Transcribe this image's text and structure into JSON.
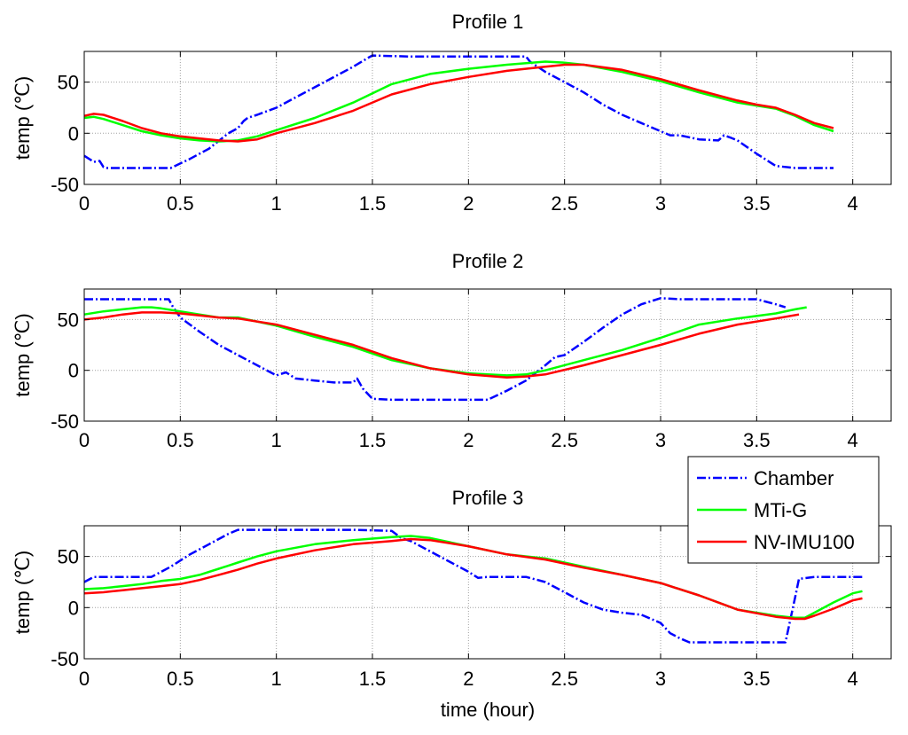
{
  "chart_data": [
    {
      "type": "line",
      "title": "Profile 1",
      "xlabel": "",
      "ylabel": "temp (℃)",
      "xlim": [
        0,
        4.2
      ],
      "ylim": [
        -50,
        80
      ],
      "xticks": [
        "0",
        "0.5",
        "1",
        "1.5",
        "2",
        "2.5",
        "3",
        "3.5",
        "4"
      ],
      "yticks": [
        "-50",
        "0",
        "50"
      ],
      "grid": true,
      "series": [
        {
          "name": "Chamber",
          "color": "#0000ff",
          "style": "dashdot",
          "x": [
            0,
            0.05,
            0.08,
            0.1,
            0.12,
            0.3,
            0.45,
            0.55,
            0.65,
            0.75,
            0.8,
            0.83,
            0.85,
            0.9,
            1.0,
            1.1,
            1.2,
            1.3,
            1.4,
            1.48,
            1.5,
            1.7,
            1.9,
            2.1,
            2.3,
            2.32,
            2.4,
            2.5,
            2.6,
            2.7,
            2.8,
            2.9,
            3.0,
            3.05,
            3.1,
            3.2,
            3.3,
            3.33,
            3.36,
            3.4,
            3.5,
            3.6,
            3.7,
            3.8,
            3.9
          ],
          "y": [
            -22,
            -28,
            -27,
            -33,
            -34,
            -34,
            -34,
            -25,
            -15,
            0,
            5,
            12,
            15,
            18,
            25,
            35,
            45,
            55,
            65,
            74,
            76,
            75,
            75,
            75,
            75,
            70,
            60,
            50,
            40,
            28,
            18,
            10,
            2,
            -2,
            -2,
            -6,
            -7,
            -2,
            -4,
            -7,
            -20,
            -32,
            -34,
            -34,
            -34
          ]
        },
        {
          "name": "MTi-G",
          "color": "#00ff00",
          "style": "solid",
          "x": [
            0,
            0.05,
            0.1,
            0.2,
            0.3,
            0.4,
            0.5,
            0.6,
            0.7,
            0.8,
            0.9,
            1.0,
            1.2,
            1.4,
            1.6,
            1.8,
            2.0,
            2.2,
            2.4,
            2.5,
            2.6,
            2.8,
            3.0,
            3.2,
            3.4,
            3.5,
            3.6,
            3.7,
            3.8,
            3.9
          ],
          "y": [
            15,
            16,
            14,
            8,
            2,
            -2,
            -5,
            -7,
            -8,
            -7,
            -3,
            3,
            15,
            30,
            48,
            58,
            63,
            67,
            70,
            69,
            67,
            60,
            51,
            40,
            30,
            27,
            24,
            17,
            8,
            2
          ]
        },
        {
          "name": "NV-IMU100",
          "color": "#ff0000",
          "style": "solid",
          "x": [
            0,
            0.05,
            0.1,
            0.2,
            0.3,
            0.4,
            0.5,
            0.6,
            0.7,
            0.8,
            0.9,
            1.0,
            1.2,
            1.4,
            1.6,
            1.8,
            2.0,
            2.2,
            2.4,
            2.5,
            2.6,
            2.8,
            3.0,
            3.2,
            3.4,
            3.5,
            3.6,
            3.7,
            3.8,
            3.9
          ],
          "y": [
            17,
            19,
            18,
            12,
            5,
            0,
            -3,
            -5,
            -7,
            -8,
            -6,
            0,
            10,
            22,
            38,
            48,
            55,
            61,
            65,
            67,
            67,
            62,
            53,
            42,
            32,
            28,
            25,
            18,
            10,
            5
          ]
        }
      ]
    },
    {
      "type": "line",
      "title": "Profile 2",
      "xlabel": "",
      "ylabel": "temp (℃)",
      "xlim": [
        0,
        4.2
      ],
      "ylim": [
        -50,
        80
      ],
      "xticks": [
        "0",
        "0.5",
        "1",
        "1.5",
        "2",
        "2.5",
        "3",
        "3.5",
        "4"
      ],
      "yticks": [
        "-50",
        "0",
        "50"
      ],
      "grid": true,
      "series": [
        {
          "name": "Chamber",
          "color": "#0000ff",
          "style": "dashdot",
          "x": [
            0,
            0.2,
            0.3,
            0.44,
            0.46,
            0.5,
            0.6,
            0.7,
            0.8,
            0.9,
            1.0,
            1.05,
            1.1,
            1.2,
            1.3,
            1.4,
            1.42,
            1.45,
            1.5,
            1.6,
            1.8,
            2.0,
            2.1,
            2.2,
            2.3,
            2.4,
            2.45,
            2.5,
            2.6,
            2.7,
            2.8,
            2.9,
            3.0,
            3.1,
            3.2,
            3.3,
            3.4,
            3.5,
            3.6,
            3.65
          ],
          "y": [
            70,
            70,
            70,
            70,
            63,
            52,
            38,
            25,
            15,
            5,
            -5,
            -2,
            -8,
            -10,
            -12,
            -12,
            -8,
            -18,
            -28,
            -29,
            -29,
            -29,
            -29,
            -20,
            -10,
            5,
            13,
            15,
            28,
            42,
            55,
            65,
            71,
            70,
            70,
            70,
            70,
            70,
            65,
            62
          ]
        },
        {
          "name": "MTi-G",
          "color": "#00ff00",
          "style": "solid",
          "x": [
            0,
            0.1,
            0.2,
            0.3,
            0.35,
            0.4,
            0.5,
            0.6,
            0.7,
            0.8,
            1.0,
            1.2,
            1.4,
            1.6,
            1.8,
            2.0,
            2.2,
            2.3,
            2.4,
            2.6,
            2.8,
            3.0,
            3.2,
            3.4,
            3.6,
            3.7,
            3.76
          ],
          "y": [
            55,
            58,
            60,
            62,
            62,
            61,
            58,
            55,
            52,
            52,
            44,
            33,
            23,
            10,
            2,
            -3,
            -5,
            -4,
            0,
            10,
            20,
            32,
            45,
            51,
            56,
            60,
            62
          ]
        },
        {
          "name": "NV-IMU100",
          "color": "#ff0000",
          "style": "solid",
          "x": [
            0,
            0.1,
            0.2,
            0.3,
            0.4,
            0.5,
            0.6,
            0.7,
            0.8,
            1.0,
            1.2,
            1.4,
            1.6,
            1.8,
            2.0,
            2.2,
            2.3,
            2.4,
            2.6,
            2.8,
            3.0,
            3.2,
            3.4,
            3.6,
            3.72
          ],
          "y": [
            50,
            52,
            55,
            57,
            57,
            56,
            54,
            52,
            51,
            45,
            35,
            25,
            12,
            2,
            -4,
            -7,
            -6,
            -4,
            5,
            15,
            25,
            36,
            45,
            51,
            55
          ]
        }
      ]
    },
    {
      "type": "line",
      "title": "Profile 3",
      "xlabel": "time (hour)",
      "ylabel": "temp (℃)",
      "xlim": [
        0,
        4.2
      ],
      "ylim": [
        -50,
        80
      ],
      "xticks": [
        "0",
        "0.5",
        "1",
        "1.5",
        "2",
        "2.5",
        "3",
        "3.5",
        "4"
      ],
      "yticks": [
        "-50",
        "0",
        "50"
      ],
      "grid": true,
      "series": [
        {
          "name": "Chamber",
          "color": "#0000ff",
          "style": "dashdot",
          "x": [
            0,
            0.05,
            0.1,
            0.2,
            0.35,
            0.45,
            0.55,
            0.65,
            0.75,
            0.8,
            1.0,
            1.2,
            1.4,
            1.6,
            1.65,
            1.7,
            1.8,
            1.9,
            2.0,
            2.05,
            2.1,
            2.2,
            2.3,
            2.4,
            2.5,
            2.6,
            2.7,
            2.8,
            2.9,
            3.0,
            3.05,
            3.1,
            3.15,
            3.2,
            3.4,
            3.6,
            3.65,
            3.7,
            3.72,
            3.8,
            3.9,
            4.0,
            4.05
          ],
          "y": [
            25,
            30,
            30,
            30,
            30,
            40,
            52,
            62,
            72,
            76,
            76,
            76,
            76,
            75,
            68,
            65,
            55,
            45,
            35,
            29,
            30,
            30,
            30,
            25,
            15,
            5,
            -2,
            -5,
            -7,
            -15,
            -25,
            -30,
            -34,
            -34,
            -34,
            -34,
            -34,
            10,
            28,
            30,
            30,
            30,
            30
          ]
        },
        {
          "name": "MTi-G",
          "color": "#00ff00",
          "style": "solid",
          "x": [
            0,
            0.1,
            0.2,
            0.3,
            0.4,
            0.5,
            0.6,
            0.7,
            0.8,
            0.9,
            1.0,
            1.2,
            1.4,
            1.6,
            1.7,
            1.8,
            2.0,
            2.2,
            2.4,
            2.6,
            2.8,
            3.0,
            3.2,
            3.4,
            3.6,
            3.7,
            3.75,
            3.8,
            3.9,
            4.0,
            4.05
          ],
          "y": [
            18,
            19,
            21,
            23,
            26,
            28,
            32,
            38,
            44,
            50,
            55,
            62,
            66,
            69,
            70,
            68,
            60,
            52,
            48,
            40,
            32,
            24,
            12,
            -2,
            -8,
            -10,
            -10,
            -5,
            5,
            14,
            16
          ]
        },
        {
          "name": "NV-IMU100",
          "color": "#ff0000",
          "style": "solid",
          "x": [
            0,
            0.1,
            0.2,
            0.3,
            0.4,
            0.5,
            0.6,
            0.7,
            0.8,
            0.9,
            1.0,
            1.2,
            1.4,
            1.6,
            1.7,
            1.8,
            2.0,
            2.2,
            2.4,
            2.6,
            2.8,
            3.0,
            3.2,
            3.4,
            3.6,
            3.7,
            3.75,
            3.8,
            3.9,
            4.0,
            4.05
          ],
          "y": [
            14,
            15,
            17,
            19,
            21,
            23,
            27,
            32,
            37,
            43,
            48,
            56,
            62,
            65,
            67,
            66,
            60,
            52,
            47,
            39,
            32,
            24,
            12,
            -2,
            -9,
            -11,
            -11,
            -8,
            -1,
            7,
            9
          ]
        }
      ]
    }
  ],
  "legend": {
    "position": "right, between profile 2 and profile 3",
    "entries": [
      {
        "name": "Chamber",
        "color": "#0000ff",
        "style": "dashdot"
      },
      {
        "name": "MTi-G",
        "color": "#00ff00",
        "style": "solid"
      },
      {
        "name": "NV-IMU100",
        "color": "#ff0000",
        "style": "solid"
      }
    ]
  }
}
